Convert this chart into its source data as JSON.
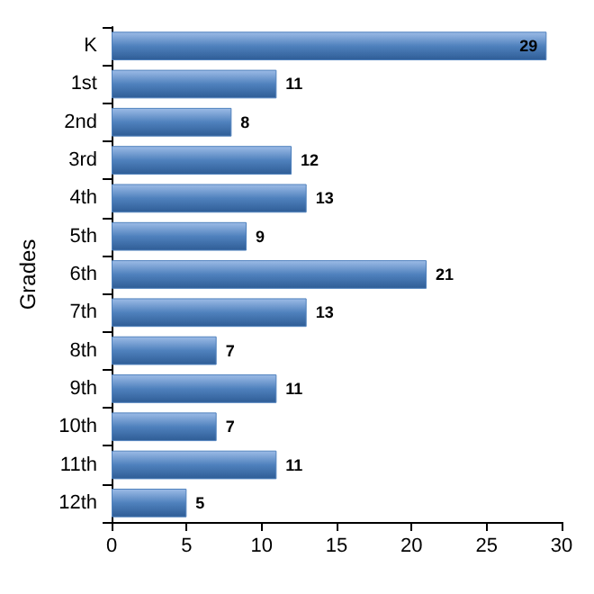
{
  "chart_data": {
    "type": "bar",
    "orientation": "horizontal",
    "ylabel": "Grades",
    "categories": [
      "K",
      "1st",
      "2nd",
      "3rd",
      "4th",
      "5th",
      "6th",
      "7th",
      "8th",
      "9th",
      "10th",
      "11th",
      "12th"
    ],
    "values": [
      29,
      11,
      8,
      12,
      13,
      9,
      21,
      13,
      7,
      11,
      7,
      11,
      5
    ],
    "color": "#4f81bd",
    "xlim": [
      0,
      30
    ],
    "xticks": [
      0,
      5,
      10,
      15,
      20,
      25,
      30
    ],
    "grid": false,
    "data_labels": true
  }
}
